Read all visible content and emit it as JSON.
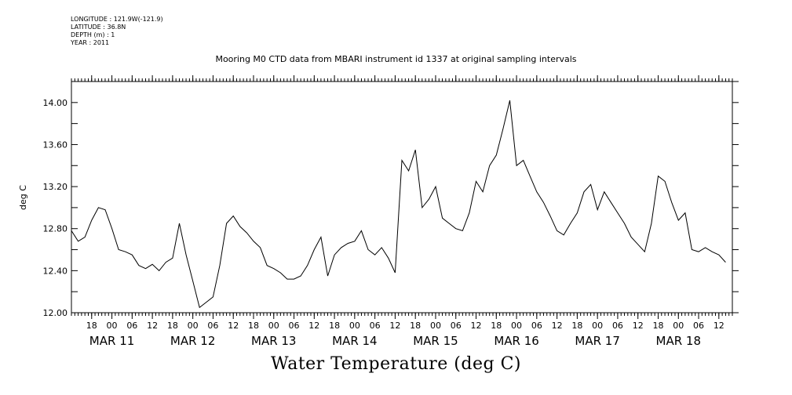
{
  "header": {
    "meta_lines": [
      "LONGITUDE : 121.9W(-121.9)",
      "LATITUDE : 36.8N",
      "DEPTH (m) : 1",
      "YEAR : 2011"
    ],
    "title": "Mooring M0 CTD data from MBARI instrument id 1337 at original sampling intervals"
  },
  "chart_data": {
    "type": "line",
    "title": "Mooring M0 CTD data from MBARI instrument id 1337 at original sampling intervals",
    "xlabel": "Water Temperature (deg C)",
    "ylabel": "deg C",
    "ylim": [
      12.0,
      14.2
    ],
    "xlim": [
      "2011-03-10T12:00",
      "2011-03-18T16:00"
    ],
    "yticks": [
      "12.00",
      "12.40",
      "12.80",
      "13.20",
      "13.60",
      "14.00"
    ],
    "hour_ticks": [
      {
        "t": "2011-03-10T18:00",
        "label": "18"
      },
      {
        "t": "2011-03-11T00:00",
        "label": "00"
      },
      {
        "t": "2011-03-11T06:00",
        "label": "06"
      },
      {
        "t": "2011-03-11T12:00",
        "label": "12"
      },
      {
        "t": "2011-03-11T18:00",
        "label": "18"
      },
      {
        "t": "2011-03-12T00:00",
        "label": "00"
      },
      {
        "t": "2011-03-12T06:00",
        "label": "06"
      },
      {
        "t": "2011-03-12T12:00",
        "label": "12"
      },
      {
        "t": "2011-03-12T18:00",
        "label": "18"
      },
      {
        "t": "2011-03-13T00:00",
        "label": "00"
      },
      {
        "t": "2011-03-13T06:00",
        "label": "06"
      },
      {
        "t": "2011-03-13T12:00",
        "label": "12"
      },
      {
        "t": "2011-03-13T18:00",
        "label": "18"
      },
      {
        "t": "2011-03-14T00:00",
        "label": "00"
      },
      {
        "t": "2011-03-14T06:00",
        "label": "06"
      },
      {
        "t": "2011-03-14T12:00",
        "label": "12"
      },
      {
        "t": "2011-03-14T18:00",
        "label": "18"
      },
      {
        "t": "2011-03-15T00:00",
        "label": "00"
      },
      {
        "t": "2011-03-15T06:00",
        "label": "06"
      },
      {
        "t": "2011-03-15T12:00",
        "label": "12"
      },
      {
        "t": "2011-03-15T18:00",
        "label": "18"
      },
      {
        "t": "2011-03-16T00:00",
        "label": "00"
      },
      {
        "t": "2011-03-16T06:00",
        "label": "06"
      },
      {
        "t": "2011-03-16T12:00",
        "label": "12"
      },
      {
        "t": "2011-03-16T18:00",
        "label": "18"
      },
      {
        "t": "2011-03-17T00:00",
        "label": "00"
      },
      {
        "t": "2011-03-17T06:00",
        "label": "06"
      },
      {
        "t": "2011-03-17T12:00",
        "label": "12"
      },
      {
        "t": "2011-03-17T18:00",
        "label": "18"
      },
      {
        "t": "2011-03-18T00:00",
        "label": "00"
      },
      {
        "t": "2011-03-18T06:00",
        "label": "06"
      },
      {
        "t": "2011-03-18T12:00",
        "label": "12"
      }
    ],
    "date_labels": [
      {
        "t": "2011-03-11T00:00",
        "label": "MAR 11"
      },
      {
        "t": "2011-03-12T00:00",
        "label": "MAR 12"
      },
      {
        "t": "2011-03-13T00:00",
        "label": "MAR 13"
      },
      {
        "t": "2011-03-14T00:00",
        "label": "MAR 14"
      },
      {
        "t": "2011-03-15T00:00",
        "label": "MAR 15"
      },
      {
        "t": "2011-03-16T00:00",
        "label": "MAR 16"
      },
      {
        "t": "2011-03-17T00:00",
        "label": "MAR 17"
      },
      {
        "t": "2011-03-18T00:00",
        "label": "MAR 18"
      }
    ],
    "series": [
      {
        "x": [
          "2011-03-10T12:00",
          "2011-03-10T14:00",
          "2011-03-10T16:00",
          "2011-03-10T18:00",
          "2011-03-10T20:00",
          "2011-03-10T22:00",
          "2011-03-11T00:00",
          "2011-03-11T02:00",
          "2011-03-11T04:00",
          "2011-03-11T06:00",
          "2011-03-11T08:00",
          "2011-03-11T10:00",
          "2011-03-11T12:00",
          "2011-03-11T14:00",
          "2011-03-11T16:00",
          "2011-03-11T18:00",
          "2011-03-11T20:00",
          "2011-03-11T22:00",
          "2011-03-12T00:00",
          "2011-03-12T02:00",
          "2011-03-12T04:00",
          "2011-03-12T06:00",
          "2011-03-12T08:00",
          "2011-03-12T10:00",
          "2011-03-12T12:00",
          "2011-03-12T14:00",
          "2011-03-12T16:00",
          "2011-03-12T18:00",
          "2011-03-12T20:00",
          "2011-03-12T22:00",
          "2011-03-13T00:00",
          "2011-03-13T02:00",
          "2011-03-13T04:00",
          "2011-03-13T06:00",
          "2011-03-13T08:00",
          "2011-03-13T10:00",
          "2011-03-13T12:00",
          "2011-03-13T14:00",
          "2011-03-13T16:00",
          "2011-03-13T18:00",
          "2011-03-13T20:00",
          "2011-03-13T22:00",
          "2011-03-14T00:00",
          "2011-03-14T02:00",
          "2011-03-14T04:00",
          "2011-03-14T06:00",
          "2011-03-14T08:00",
          "2011-03-14T10:00",
          "2011-03-14T12:00",
          "2011-03-14T14:00",
          "2011-03-14T16:00",
          "2011-03-14T18:00",
          "2011-03-14T20:00",
          "2011-03-14T22:00",
          "2011-03-15T00:00",
          "2011-03-15T02:00",
          "2011-03-15T04:00",
          "2011-03-15T06:00",
          "2011-03-15T08:00",
          "2011-03-15T10:00",
          "2011-03-15T12:00",
          "2011-03-15T14:00",
          "2011-03-15T16:00",
          "2011-03-15T18:00",
          "2011-03-15T20:00",
          "2011-03-15T22:00",
          "2011-03-16T00:00",
          "2011-03-16T02:00",
          "2011-03-16T04:00",
          "2011-03-16T06:00",
          "2011-03-16T08:00",
          "2011-03-16T10:00",
          "2011-03-16T12:00",
          "2011-03-16T14:00",
          "2011-03-16T16:00",
          "2011-03-16T18:00",
          "2011-03-16T20:00",
          "2011-03-16T22:00",
          "2011-03-17T00:00",
          "2011-03-17T02:00",
          "2011-03-17T04:00",
          "2011-03-17T06:00",
          "2011-03-17T08:00",
          "2011-03-17T10:00",
          "2011-03-17T12:00",
          "2011-03-17T14:00",
          "2011-03-17T16:00",
          "2011-03-17T18:00",
          "2011-03-17T20:00",
          "2011-03-17T22:00",
          "2011-03-18T00:00",
          "2011-03-18T02:00",
          "2011-03-18T04:00",
          "2011-03-18T06:00",
          "2011-03-18T08:00",
          "2011-03-18T10:00",
          "2011-03-18T12:00",
          "2011-03-18T14:00"
        ],
        "y": [
          12.78,
          12.68,
          12.72,
          12.88,
          13.0,
          12.98,
          12.8,
          12.6,
          12.58,
          12.55,
          12.45,
          12.42,
          12.46,
          12.4,
          12.48,
          12.52,
          12.85,
          12.55,
          12.3,
          12.05,
          12.1,
          12.15,
          12.45,
          12.85,
          12.92,
          12.82,
          12.76,
          12.68,
          12.62,
          12.45,
          12.42,
          12.38,
          12.32,
          12.32,
          12.35,
          12.45,
          12.6,
          12.72,
          12.35,
          12.55,
          12.62,
          12.66,
          12.68,
          12.78,
          12.6,
          12.55,
          12.62,
          12.52,
          12.38,
          13.45,
          13.35,
          13.55,
          13.0,
          13.08,
          13.2,
          12.9,
          12.85,
          12.8,
          12.78,
          12.95,
          13.25,
          13.15,
          13.4,
          13.5,
          13.75,
          14.02,
          13.4,
          13.45,
          13.3,
          13.15,
          13.05,
          12.92,
          12.78,
          12.74,
          12.85,
          12.95,
          13.15,
          13.22,
          12.98,
          13.15,
          13.05,
          12.95,
          12.85,
          12.72,
          12.65,
          12.58,
          12.85,
          13.3,
          13.25,
          13.05,
          12.88,
          12.95,
          12.6,
          12.58,
          12.62,
          12.58,
          12.55,
          12.48
        ]
      }
    ]
  }
}
